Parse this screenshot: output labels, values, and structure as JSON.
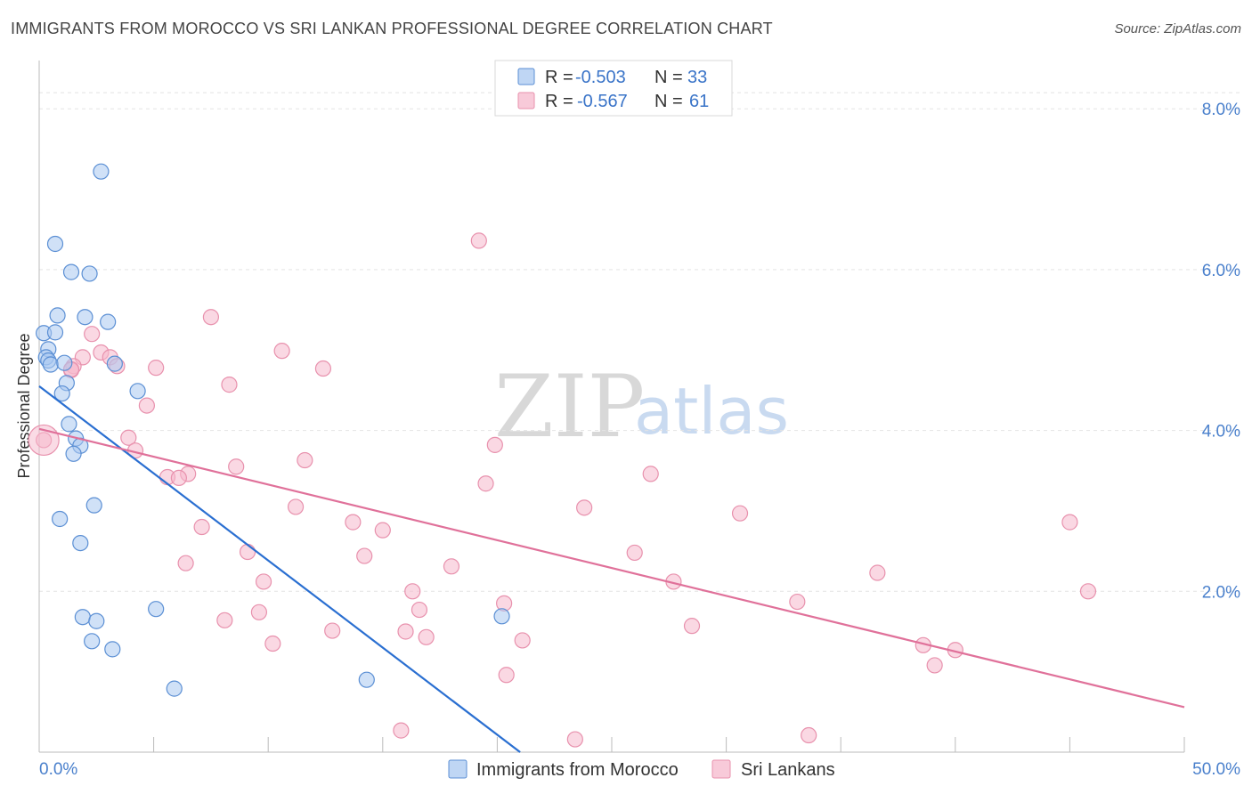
{
  "header": {
    "title": "IMMIGRANTS FROM MOROCCO VS SRI LANKAN PROFESSIONAL DEGREE CORRELATION CHART",
    "source": "Source: ZipAtlas.com"
  },
  "watermark": {
    "zip": "ZIP",
    "atlas": "atlas"
  },
  "chart_data": {
    "type": "scatter",
    "title": "IMMIGRANTS FROM MOROCCO VS SRI LANKAN PROFESSIONAL DEGREE CORRELATION CHART",
    "xlabel": "",
    "ylabel": "Professional Degree",
    "xlim": [
      0,
      50
    ],
    "ylim": [
      0,
      8.6
    ],
    "x_tick_labels": {
      "min": "0.0%",
      "max": "50.0%"
    },
    "y_ticks": [
      {
        "value": 2,
        "label": "2.0%"
      },
      {
        "value": 4,
        "label": "4.0%"
      },
      {
        "value": 6,
        "label": "6.0%"
      },
      {
        "value": 8,
        "label": "8.0%"
      }
    ],
    "legend": [
      {
        "swatch_color": "#a9c8f0",
        "r_label": "R = ",
        "r_value": "-0.503",
        "n_label": "N = ",
        "n_value": "33"
      },
      {
        "swatch_color": "#f6b8cc",
        "r_label": "R = ",
        "r_value": "-0.567",
        "n_label": "N = ",
        "n_value": "61"
      }
    ],
    "series": [
      {
        "name": "Immigrants from Morocco",
        "fill": "#a9c8f0",
        "stroke": "#5b8fd4",
        "line_color": "#2a6fd1",
        "trend": {
          "x0": 0,
          "y0": 4.55,
          "x1": 21.0,
          "y1": 0.0
        },
        "points": [
          [
            2.7,
            7.22
          ],
          [
            0.7,
            6.32
          ],
          [
            1.4,
            5.97
          ],
          [
            2.2,
            5.95
          ],
          [
            0.8,
            5.43
          ],
          [
            2.0,
            5.41
          ],
          [
            3.0,
            5.35
          ],
          [
            0.2,
            5.21
          ],
          [
            0.7,
            5.22
          ],
          [
            0.4,
            5.01
          ],
          [
            0.3,
            4.91
          ],
          [
            0.4,
            4.87
          ],
          [
            0.5,
            4.82
          ],
          [
            1.1,
            4.84
          ],
          [
            3.3,
            4.83
          ],
          [
            1.2,
            4.59
          ],
          [
            4.3,
            4.49
          ],
          [
            1.0,
            4.46
          ],
          [
            1.3,
            4.08
          ],
          [
            1.6,
            3.9
          ],
          [
            1.8,
            3.81
          ],
          [
            1.5,
            3.71
          ],
          [
            2.4,
            3.07
          ],
          [
            0.9,
            2.9
          ],
          [
            1.8,
            2.6
          ],
          [
            5.1,
            1.78
          ],
          [
            1.9,
            1.68
          ],
          [
            2.5,
            1.63
          ],
          [
            2.3,
            1.38
          ],
          [
            3.2,
            1.28
          ],
          [
            20.2,
            1.69
          ],
          [
            14.3,
            0.9
          ],
          [
            5.9,
            0.79
          ]
        ]
      },
      {
        "name": "Sri Lankans",
        "fill": "#f6b8cc",
        "stroke": "#e891ad",
        "line_color": "#e0719a",
        "trend": {
          "x0": 0,
          "y0": 4.02,
          "x1": 50.0,
          "y1": 0.56
        },
        "points": [
          [
            19.2,
            6.36
          ],
          [
            7.5,
            5.41
          ],
          [
            2.3,
            5.2
          ],
          [
            10.6,
            4.99
          ],
          [
            2.7,
            4.97
          ],
          [
            3.1,
            4.91
          ],
          [
            1.9,
            4.91
          ],
          [
            1.5,
            4.8
          ],
          [
            3.4,
            4.8
          ],
          [
            5.1,
            4.78
          ],
          [
            12.4,
            4.77
          ],
          [
            1.4,
            4.75
          ],
          [
            8.3,
            4.57
          ],
          [
            4.7,
            4.31
          ],
          [
            3.9,
            3.91
          ],
          [
            19.9,
            3.82
          ],
          [
            4.2,
            3.75
          ],
          [
            11.6,
            3.63
          ],
          [
            8.6,
            3.55
          ],
          [
            6.5,
            3.46
          ],
          [
            5.6,
            3.42
          ],
          [
            6.1,
            3.41
          ],
          [
            26.7,
            3.46
          ],
          [
            19.5,
            3.34
          ],
          [
            11.2,
            3.05
          ],
          [
            23.8,
            3.04
          ],
          [
            30.6,
            2.97
          ],
          [
            45.0,
            2.86
          ],
          [
            13.7,
            2.86
          ],
          [
            7.1,
            2.8
          ],
          [
            15.0,
            2.76
          ],
          [
            9.1,
            2.49
          ],
          [
            26.0,
            2.48
          ],
          [
            14.2,
            2.44
          ],
          [
            6.4,
            2.35
          ],
          [
            18.0,
            2.31
          ],
          [
            36.6,
            2.23
          ],
          [
            9.8,
            2.12
          ],
          [
            27.7,
            2.12
          ],
          [
            16.3,
            2.0
          ],
          [
            45.8,
            2.0
          ],
          [
            20.3,
            1.85
          ],
          [
            33.1,
            1.87
          ],
          [
            16.6,
            1.77
          ],
          [
            9.6,
            1.74
          ],
          [
            8.1,
            1.64
          ],
          [
            28.5,
            1.57
          ],
          [
            12.8,
            1.51
          ],
          [
            16.0,
            1.5
          ],
          [
            16.9,
            1.43
          ],
          [
            21.1,
            1.39
          ],
          [
            10.2,
            1.35
          ],
          [
            38.6,
            1.33
          ],
          [
            40.0,
            1.27
          ],
          [
            20.4,
            0.96
          ],
          [
            39.1,
            1.08
          ],
          [
            15.8,
            0.27
          ],
          [
            23.4,
            0.16
          ],
          [
            33.6,
            0.21
          ],
          [
            0.2,
            3.88
          ],
          [
            1.4,
            4.76
          ]
        ]
      }
    ]
  }
}
